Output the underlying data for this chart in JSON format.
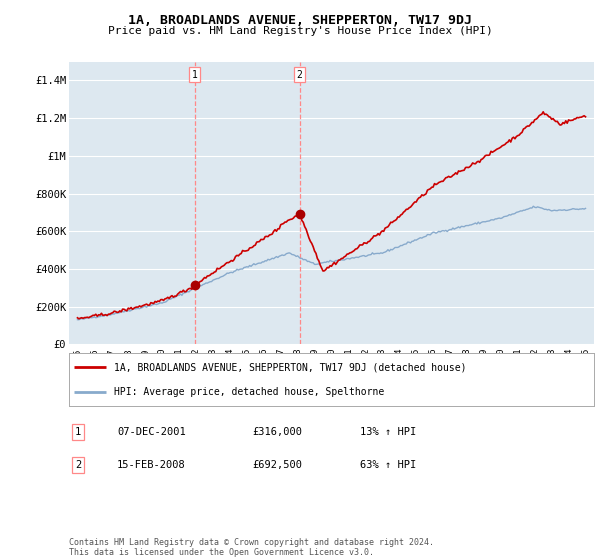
{
  "title": "1A, BROADLANDS AVENUE, SHEPPERTON, TW17 9DJ",
  "subtitle": "Price paid vs. HM Land Registry's House Price Index (HPI)",
  "background_color": "#ffffff",
  "plot_bg_color": "#dde8f0",
  "grid_color": "#ffffff",
  "ylim": [
    0,
    1500000
  ],
  "yticks": [
    0,
    200000,
    400000,
    600000,
    800000,
    1000000,
    1200000,
    1400000
  ],
  "ytick_labels": [
    "£0",
    "£200K",
    "£400K",
    "£600K",
    "£800K",
    "£1M",
    "£1.2M",
    "£1.4M"
  ],
  "sale1_year": 2001.92,
  "sale1_price": 316000,
  "sale2_year": 2008.12,
  "sale2_price": 692500,
  "vline_color": "#ff8888",
  "sale_dot_color": "#aa0000",
  "property_line_color": "#cc0000",
  "hpi_line_color": "#88aacc",
  "legend_property": "1A, BROADLANDS AVENUE, SHEPPERTON, TW17 9DJ (detached house)",
  "legend_hpi": "HPI: Average price, detached house, Spelthorne",
  "footnote": "Contains HM Land Registry data © Crown copyright and database right 2024.\nThis data is licensed under the Open Government Licence v3.0.",
  "table_row1": [
    "1",
    "07-DEC-2001",
    "£316,000",
    "13% ↑ HPI"
  ],
  "table_row2": [
    "2",
    "15-FEB-2008",
    "£692,500",
    "63% ↑ HPI"
  ]
}
